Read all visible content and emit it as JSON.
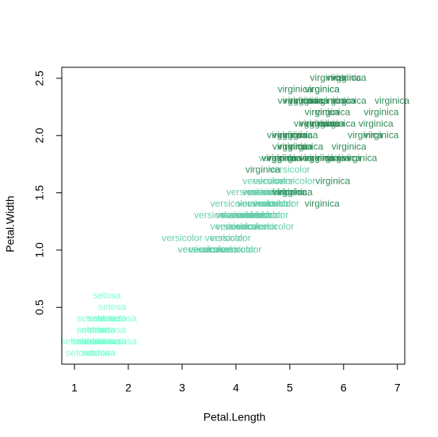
{
  "chart_data": {
    "type": "scatter",
    "x_label": "Petal.Length",
    "y_label": "Petal.Width",
    "xlim": [
      0.764,
      7.136
    ],
    "ylim": [
      0.004,
      2.596
    ],
    "xticks": [
      1,
      2,
      3,
      4,
      5,
      6,
      7
    ],
    "yticks": [
      0.5,
      {
        "value": 1,
        "label": "1.0"
      },
      1.5,
      {
        "value": 2,
        "label": "2.0"
      },
      2.5
    ],
    "series": [
      {
        "name": "setosa",
        "color": "#7fffd4",
        "x": [
          1.4,
          1.4,
          1.3,
          1.5,
          1.4,
          1.7,
          1.4,
          1.5,
          1.4,
          1.5,
          1.5,
          1.6,
          1.4,
          1.1,
          1.2,
          1.5,
          1.3,
          1.4,
          1.7,
          1.5,
          1.7,
          1.5,
          1.0,
          1.7,
          1.9,
          1.6,
          1.6,
          1.5,
          1.4,
          1.6,
          1.6,
          1.5,
          1.5,
          1.4,
          1.5,
          1.2,
          1.3,
          1.4,
          1.3,
          1.5,
          1.3,
          1.3,
          1.3,
          1.6,
          1.9,
          1.4,
          1.6,
          1.4,
          1.5,
          1.4
        ],
        "values": [
          0.2,
          0.2,
          0.2,
          0.2,
          0.2,
          0.4,
          0.3,
          0.2,
          0.2,
          0.1,
          0.2,
          0.2,
          0.1,
          0.1,
          0.2,
          0.4,
          0.4,
          0.3,
          0.3,
          0.3,
          0.2,
          0.4,
          0.2,
          0.5,
          0.2,
          0.2,
          0.4,
          0.2,
          0.2,
          0.2,
          0.2,
          0.4,
          0.1,
          0.2,
          0.2,
          0.2,
          0.2,
          0.1,
          0.2,
          0.2,
          0.3,
          0.3,
          0.2,
          0.6,
          0.4,
          0.3,
          0.2,
          0.2,
          0.2,
          0.2
        ]
      },
      {
        "name": "versicolor",
        "color": "#66cdaa",
        "x": [
          4.7,
          4.5,
          4.9,
          4.0,
          4.6,
          4.5,
          4.7,
          3.3,
          4.6,
          3.9,
          3.5,
          4.2,
          4.0,
          4.7,
          3.6,
          4.4,
          4.5,
          4.1,
          4.5,
          3.9,
          4.8,
          4.0,
          4.9,
          4.7,
          4.3,
          4.4,
          4.8,
          5.0,
          4.5,
          3.5,
          3.8,
          3.7,
          3.9,
          5.1,
          4.5,
          4.5,
          4.7,
          4.4,
          4.1,
          4.0,
          4.4,
          4.6,
          4.0,
          3.3,
          4.2,
          4.2,
          4.2,
          4.3,
          3.0,
          4.1
        ],
        "values": [
          1.4,
          1.5,
          1.5,
          1.3,
          1.5,
          1.3,
          1.6,
          1.0,
          1.3,
          1.4,
          1.0,
          1.5,
          1.0,
          1.4,
          1.3,
          1.4,
          1.5,
          1.0,
          1.5,
          1.1,
          1.8,
          1.3,
          1.5,
          1.2,
          1.3,
          1.4,
          1.4,
          1.7,
          1.5,
          1.0,
          1.1,
          1.0,
          1.2,
          1.6,
          1.5,
          1.6,
          1.5,
          1.3,
          1.3,
          1.3,
          1.2,
          1.4,
          1.2,
          1.0,
          1.3,
          1.2,
          1.3,
          1.3,
          1.1,
          1.3
        ]
      },
      {
        "name": "virginica",
        "color": "#2e8b57",
        "x": [
          6.0,
          5.1,
          5.9,
          5.6,
          5.8,
          6.6,
          4.5,
          6.3,
          5.8,
          6.1,
          5.1,
          5.3,
          5.5,
          5.0,
          5.1,
          5.3,
          5.5,
          6.7,
          6.9,
          5.0,
          5.7,
          4.9,
          6.7,
          4.9,
          5.7,
          6.0,
          4.8,
          4.9,
          5.6,
          5.8,
          6.1,
          6.4,
          5.6,
          5.1,
          5.6,
          6.1,
          5.6,
          5.5,
          4.8,
          5.4,
          5.6,
          5.1,
          5.1,
          5.9,
          5.7,
          5.2,
          5.0,
          5.2,
          5.4,
          5.1
        ],
        "values": [
          2.5,
          1.9,
          2.1,
          1.8,
          2.2,
          2.1,
          1.7,
          1.8,
          1.8,
          2.5,
          2.0,
          1.9,
          2.1,
          2.0,
          2.4,
          2.3,
          1.8,
          2.2,
          2.3,
          1.5,
          2.3,
          2.0,
          2.0,
          1.8,
          2.1,
          1.8,
          1.8,
          1.8,
          2.1,
          1.6,
          1.9,
          2.0,
          2.2,
          1.5,
          1.4,
          2.3,
          2.4,
          1.8,
          1.8,
          2.1,
          2.4,
          2.3,
          1.9,
          2.3,
          2.5,
          2.3,
          1.9,
          2.0,
          2.3,
          1.8
        ]
      }
    ]
  }
}
